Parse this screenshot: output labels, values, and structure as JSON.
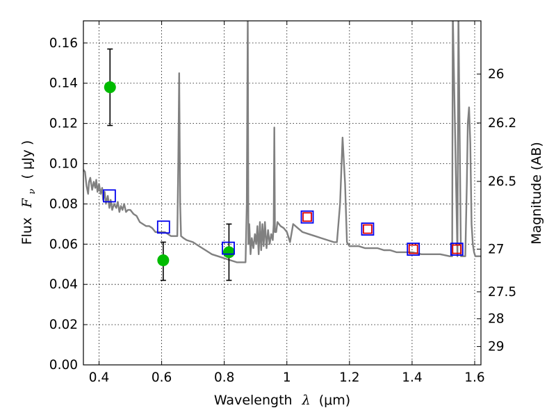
{
  "chart_data": {
    "type": "scatter",
    "xlabel_text": "Wavelength",
    "xlabel_symbol": "λ",
    "xlabel_unit": "(μm)",
    "ylabel_text": "Flux",
    "ylabel_symbol": "F",
    "ylabel_subscript": "ν",
    "ylabel_unit": "( μJy )",
    "y2label": "Magnitude (AB)",
    "xlim": [
      0.35,
      1.62
    ],
    "ylim": [
      0.0,
      0.171
    ],
    "grid": true,
    "x_ticks": [
      0.4,
      0.6,
      0.8,
      1.0,
      1.2,
      1.4,
      1.6
    ],
    "x_tick_labels": [
      "0.4",
      "0.6",
      "0.8",
      "1",
      "1.2",
      "1.4",
      "1.6"
    ],
    "y_ticks": [
      0.0,
      0.02,
      0.04,
      0.06,
      0.08,
      0.1,
      0.12,
      0.14,
      0.16
    ],
    "y_tick_labels": [
      "0.00",
      "0.02",
      "0.04",
      "0.06",
      "0.08",
      "0.10",
      "0.12",
      "0.14",
      "0.16"
    ],
    "y2_ticks": [
      26,
      26.2,
      26.5,
      27,
      27.5,
      28,
      29
    ],
    "y2_tick_labels": [
      "26",
      "26.2",
      "26.5",
      "27",
      "27.5",
      "28",
      "29"
    ],
    "series": [
      {
        "name": "model_spectrum",
        "kind": "line",
        "color": "#808080",
        "x": [
          0.35,
          0.355,
          0.36,
          0.365,
          0.368,
          0.372,
          0.378,
          0.383,
          0.388,
          0.391,
          0.395,
          0.4,
          0.405,
          0.41,
          0.413,
          0.418,
          0.422,
          0.428,
          0.433,
          0.437,
          0.442,
          0.448,
          0.455,
          0.46,
          0.465,
          0.47,
          0.475,
          0.48,
          0.486,
          0.492,
          0.5,
          0.51,
          0.52,
          0.53,
          0.54,
          0.55,
          0.56,
          0.57,
          0.58,
          0.59,
          0.6,
          0.61,
          0.62,
          0.63,
          0.64,
          0.65,
          0.653,
          0.656,
          0.659,
          0.662,
          0.67,
          0.68,
          0.7,
          0.72,
          0.74,
          0.76,
          0.78,
          0.8,
          0.82,
          0.84,
          0.86,
          0.868,
          0.872,
          0.875,
          0.877,
          0.88,
          0.884,
          0.888,
          0.893,
          0.898,
          0.902,
          0.906,
          0.91,
          0.914,
          0.918,
          0.922,
          0.926,
          0.93,
          0.935,
          0.94,
          0.945,
          0.95,
          0.955,
          0.958,
          0.96,
          0.962,
          0.966,
          0.97,
          0.98,
          0.99,
          1.0,
          1.01,
          1.02,
          1.035,
          1.05,
          1.07,
          1.09,
          1.11,
          1.13,
          1.15,
          1.16,
          1.17,
          1.178,
          1.186,
          1.192,
          1.2,
          1.21,
          1.23,
          1.25,
          1.27,
          1.29,
          1.31,
          1.33,
          1.35,
          1.37,
          1.4,
          1.43,
          1.46,
          1.49,
          1.52,
          1.528,
          1.53,
          1.545,
          1.548,
          1.556,
          1.56,
          1.565,
          1.57,
          1.575,
          1.578,
          1.582,
          1.586,
          1.59,
          1.594,
          1.598,
          1.602,
          1.61,
          1.62
        ],
        "values": [
          0.097,
          0.096,
          0.089,
          0.085,
          0.091,
          0.093,
          0.087,
          0.091,
          0.088,
          0.092,
          0.086,
          0.09,
          0.085,
          0.088,
          0.082,
          0.086,
          0.08,
          0.084,
          0.078,
          0.082,
          0.077,
          0.08,
          0.078,
          0.081,
          0.076,
          0.079,
          0.077,
          0.08,
          0.076,
          0.077,
          0.077,
          0.075,
          0.074,
          0.071,
          0.07,
          0.069,
          0.069,
          0.068,
          0.066,
          0.066,
          0.066,
          0.066,
          0.065,
          0.064,
          0.064,
          0.064,
          0.1,
          0.145,
          0.08,
          0.064,
          0.063,
          0.062,
          0.061,
          0.059,
          0.057,
          0.055,
          0.054,
          0.053,
          0.052,
          0.051,
          0.051,
          0.051,
          0.08,
          0.175,
          0.06,
          0.07,
          0.055,
          0.063,
          0.058,
          0.065,
          0.06,
          0.069,
          0.055,
          0.071,
          0.057,
          0.07,
          0.059,
          0.071,
          0.058,
          0.067,
          0.06,
          0.065,
          0.062,
          0.07,
          0.118,
          0.066,
          0.066,
          0.071,
          0.069,
          0.068,
          0.066,
          0.061,
          0.07,
          0.068,
          0.066,
          0.065,
          0.064,
          0.063,
          0.062,
          0.061,
          0.061,
          0.08,
          0.113,
          0.09,
          0.061,
          0.059,
          0.059,
          0.059,
          0.058,
          0.058,
          0.058,
          0.057,
          0.057,
          0.056,
          0.056,
          0.056,
          0.055,
          0.055,
          0.055,
          0.054,
          0.054,
          0.175,
          0.054,
          0.175,
          0.054,
          0.054,
          0.054,
          0.054,
          0.09,
          0.12,
          0.128,
          0.11,
          0.07,
          0.06,
          0.056,
          0.054,
          0.054,
          0.054
        ]
      },
      {
        "name": "observed_flux",
        "kind": "points",
        "color": "#00bb00",
        "x": [
          0.435,
          0.605,
          0.815
        ],
        "values": [
          0.138,
          0.052,
          0.056
        ],
        "err_low": [
          0.119,
          0.042,
          0.042
        ],
        "err_high": [
          0.157,
          0.061,
          0.07
        ]
      },
      {
        "name": "model_band_flux",
        "kind": "open_squares",
        "color": "#0000ee",
        "x": [
          0.433,
          0.606,
          0.813,
          1.065,
          1.258,
          1.404,
          1.543
        ],
        "values": [
          0.084,
          0.0685,
          0.058,
          0.0735,
          0.0675,
          0.0575,
          0.0575
        ]
      },
      {
        "name": "model_band_flux_red",
        "kind": "open_squares",
        "color": "#dd0000",
        "x": [
          1.065,
          1.258,
          1.404,
          1.543
        ],
        "values": [
          0.0735,
          0.0675,
          0.0575,
          0.0575
        ]
      }
    ]
  }
}
